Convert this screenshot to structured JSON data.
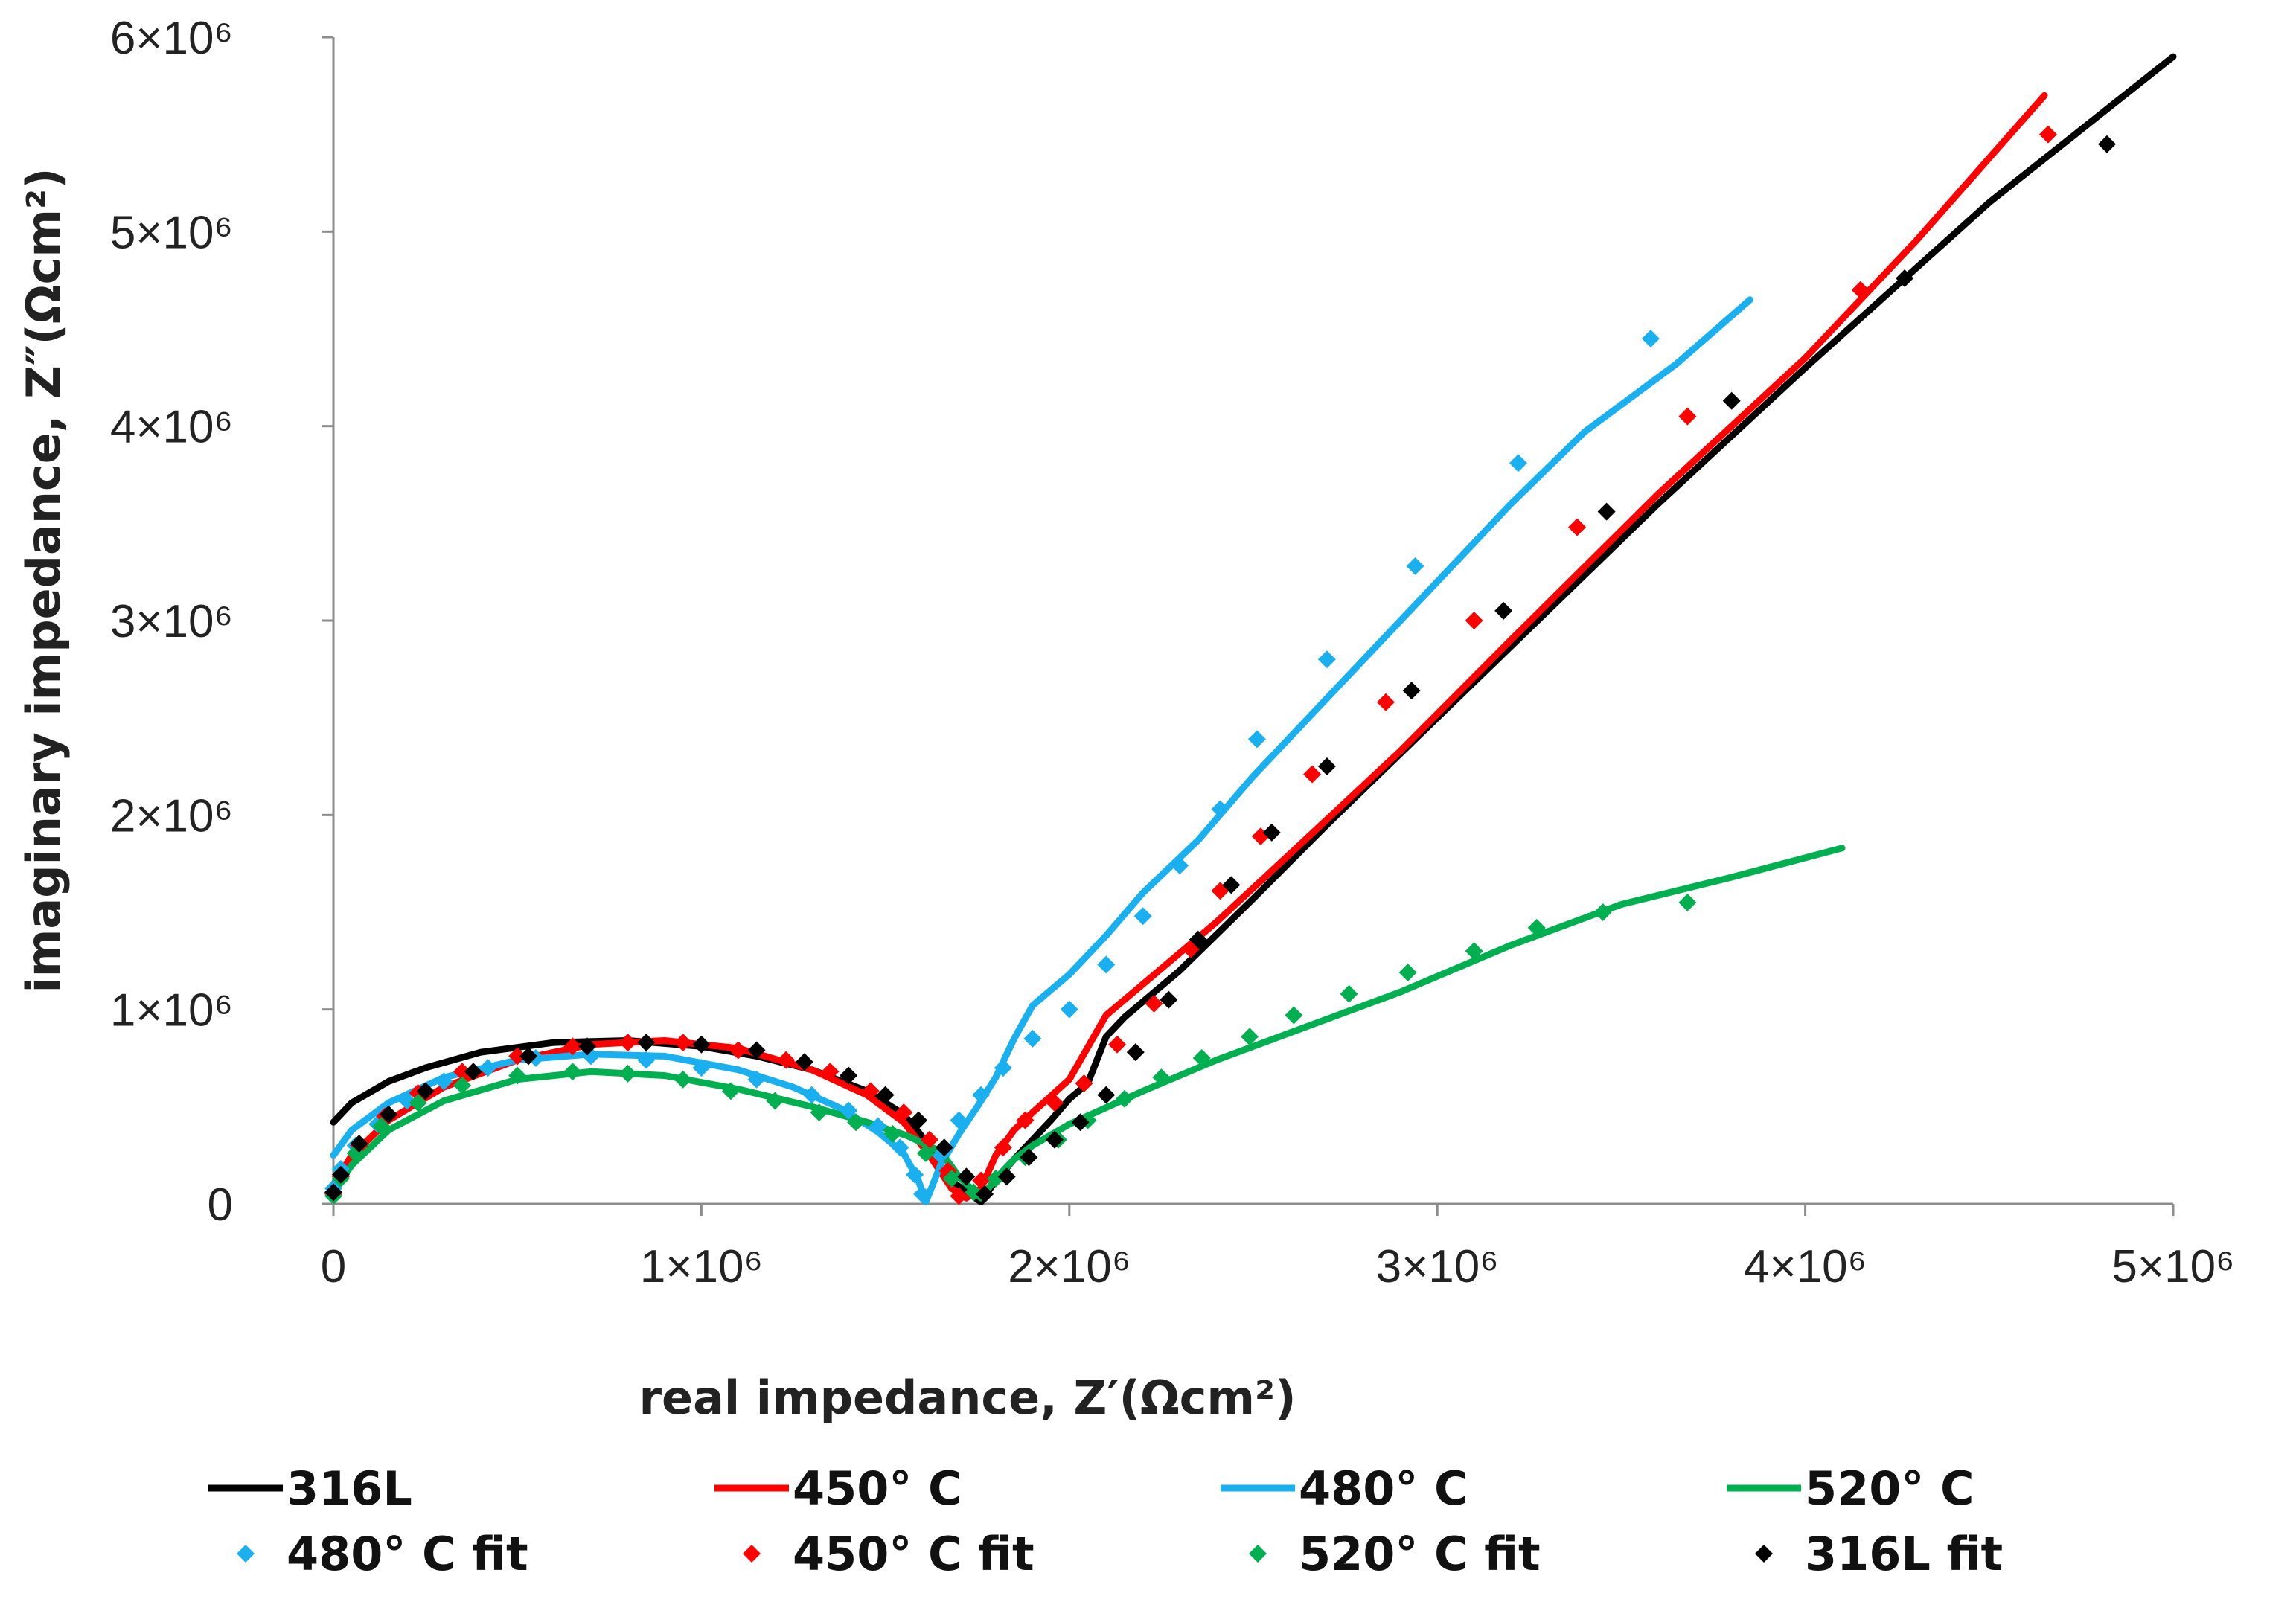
{
  "chart_data": {
    "type": "scatter",
    "title": "",
    "xlabel": "real impedance, Z′(Ωcm²)",
    "ylabel": "imaginary impedance, Z″(Ωcm²)",
    "xlim": [
      0,
      5000000
    ],
    "ylim": [
      0,
      6000000
    ],
    "x_ticks": [
      {
        "value": 0,
        "label": "0"
      },
      {
        "value": 1000000,
        "label": "1×10⁶"
      },
      {
        "value": 2000000,
        "label": "2×10⁶"
      },
      {
        "value": 3000000,
        "label": "3×10⁶"
      },
      {
        "value": 4000000,
        "label": "4×10⁶"
      },
      {
        "value": 5000000,
        "label": "5×10⁶"
      }
    ],
    "y_ticks": [
      {
        "value": 0,
        "label": "0"
      },
      {
        "value": 1000000,
        "label": "1×10⁶"
      },
      {
        "value": 2000000,
        "label": "2×10⁶"
      },
      {
        "value": 3000000,
        "label": "3×10⁶"
      },
      {
        "value": 4000000,
        "label": "4×10⁶"
      },
      {
        "value": 5000000,
        "label": "5×10⁶"
      },
      {
        "value": 6000000,
        "label": "6×10⁶"
      }
    ],
    "grid": false,
    "legend_position": "bottom",
    "series": [
      {
        "name": "316L",
        "kind": "line",
        "color": "#000000",
        "points": [
          [
            0,
            420000
          ],
          [
            50000,
            520000
          ],
          [
            150000,
            630000
          ],
          [
            250000,
            700000
          ],
          [
            400000,
            780000
          ],
          [
            600000,
            830000
          ],
          [
            800000,
            840000
          ],
          [
            1000000,
            810000
          ],
          [
            1150000,
            760000
          ],
          [
            1300000,
            690000
          ],
          [
            1450000,
            580000
          ],
          [
            1550000,
            460000
          ],
          [
            1620000,
            300000
          ],
          [
            1650000,
            160000
          ],
          [
            1700000,
            90000
          ],
          [
            1760000,
            10000
          ],
          [
            1800000,
            120000
          ],
          [
            1850000,
            230000
          ],
          [
            1900000,
            330000
          ],
          [
            1950000,
            430000
          ],
          [
            2000000,
            540000
          ],
          [
            2050000,
            620000
          ],
          [
            2100000,
            860000
          ],
          [
            2150000,
            960000
          ],
          [
            2300000,
            1200000
          ],
          [
            2500000,
            1570000
          ],
          [
            2700000,
            1950000
          ],
          [
            3000000,
            2500000
          ],
          [
            3300000,
            3050000
          ],
          [
            3600000,
            3600000
          ],
          [
            4000000,
            4300000
          ],
          [
            4500000,
            5150000
          ],
          [
            5000000,
            5900000
          ]
        ]
      },
      {
        "name": "450° C",
        "kind": "line",
        "color": "#ff0000",
        "points": [
          [
            0,
            100000
          ],
          [
            50000,
            250000
          ],
          [
            150000,
            430000
          ],
          [
            300000,
            600000
          ],
          [
            500000,
            740000
          ],
          [
            700000,
            820000
          ],
          [
            900000,
            840000
          ],
          [
            1100000,
            800000
          ],
          [
            1300000,
            690000
          ],
          [
            1450000,
            560000
          ],
          [
            1550000,
            420000
          ],
          [
            1620000,
            250000
          ],
          [
            1680000,
            80000
          ],
          [
            1720000,
            30000
          ],
          [
            1760000,
            80000
          ],
          [
            1800000,
            250000
          ],
          [
            1850000,
            380000
          ],
          [
            1900000,
            470000
          ],
          [
            2000000,
            640000
          ],
          [
            2100000,
            970000
          ],
          [
            2200000,
            1130000
          ],
          [
            2400000,
            1450000
          ],
          [
            2600000,
            1800000
          ],
          [
            2900000,
            2330000
          ],
          [
            3200000,
            2900000
          ],
          [
            3600000,
            3650000
          ],
          [
            4000000,
            4350000
          ],
          [
            4300000,
            4950000
          ],
          [
            4650000,
            5700000
          ]
        ]
      },
      {
        "name": "480° C",
        "kind": "line",
        "color": "#1ab0f0",
        "points": [
          [
            0,
            250000
          ],
          [
            50000,
            380000
          ],
          [
            150000,
            520000
          ],
          [
            300000,
            650000
          ],
          [
            500000,
            740000
          ],
          [
            700000,
            770000
          ],
          [
            900000,
            760000
          ],
          [
            1100000,
            690000
          ],
          [
            1250000,
            600000
          ],
          [
            1380000,
            490000
          ],
          [
            1480000,
            370000
          ],
          [
            1550000,
            260000
          ],
          [
            1590000,
            120000
          ],
          [
            1610000,
            10000
          ],
          [
            1650000,
            200000
          ],
          [
            1700000,
            360000
          ],
          [
            1750000,
            500000
          ],
          [
            1800000,
            650000
          ],
          [
            1850000,
            850000
          ],
          [
            1900000,
            1020000
          ],
          [
            2000000,
            1180000
          ],
          [
            2100000,
            1380000
          ],
          [
            2200000,
            1600000
          ],
          [
            2350000,
            1870000
          ],
          [
            2500000,
            2200000
          ],
          [
            2700000,
            2600000
          ],
          [
            2950000,
            3100000
          ],
          [
            3200000,
            3600000
          ],
          [
            3400000,
            3970000
          ],
          [
            3650000,
            4320000
          ],
          [
            3850000,
            4650000
          ]
        ]
      },
      {
        "name": "520° C",
        "kind": "line",
        "color": "#00b050",
        "points": [
          [
            0,
            60000
          ],
          [
            50000,
            200000
          ],
          [
            150000,
            380000
          ],
          [
            300000,
            530000
          ],
          [
            500000,
            640000
          ],
          [
            700000,
            680000
          ],
          [
            900000,
            660000
          ],
          [
            1100000,
            590000
          ],
          [
            1300000,
            500000
          ],
          [
            1450000,
            420000
          ],
          [
            1560000,
            350000
          ],
          [
            1650000,
            270000
          ],
          [
            1700000,
            140000
          ],
          [
            1760000,
            30000
          ],
          [
            1800000,
            130000
          ],
          [
            1850000,
            230000
          ],
          [
            1900000,
            300000
          ],
          [
            2000000,
            410000
          ],
          [
            2200000,
            580000
          ],
          [
            2400000,
            740000
          ],
          [
            2600000,
            880000
          ],
          [
            2900000,
            1090000
          ],
          [
            3200000,
            1330000
          ],
          [
            3500000,
            1540000
          ],
          [
            3800000,
            1680000
          ],
          [
            4100000,
            1830000
          ]
        ]
      },
      {
        "name": "480° C fit",
        "kind": "markers",
        "color": "#1ab0f0",
        "points": [
          [
            0,
            80000
          ],
          [
            20000,
            180000
          ],
          [
            60000,
            300000
          ],
          [
            120000,
            410000
          ],
          [
            200000,
            530000
          ],
          [
            300000,
            630000
          ],
          [
            420000,
            700000
          ],
          [
            550000,
            750000
          ],
          [
            700000,
            760000
          ],
          [
            850000,
            740000
          ],
          [
            1000000,
            700000
          ],
          [
            1150000,
            640000
          ],
          [
            1300000,
            560000
          ],
          [
            1400000,
            480000
          ],
          [
            1480000,
            400000
          ],
          [
            1540000,
            290000
          ],
          [
            1580000,
            150000
          ],
          [
            1600000,
            50000
          ],
          [
            1650000,
            250000
          ],
          [
            1700000,
            430000
          ],
          [
            1760000,
            560000
          ],
          [
            1820000,
            700000
          ],
          [
            1900000,
            850000
          ],
          [
            2000000,
            1000000
          ],
          [
            2100000,
            1230000
          ],
          [
            2200000,
            1480000
          ],
          [
            2300000,
            1740000
          ],
          [
            2410000,
            2030000
          ],
          [
            2510000,
            2390000
          ],
          [
            2700000,
            2800000
          ],
          [
            2940000,
            3280000
          ],
          [
            3220000,
            3810000
          ],
          [
            3580000,
            4450000
          ]
        ]
      },
      {
        "name": "450° C fit",
        "kind": "markers",
        "color": "#ff0000",
        "points": [
          [
            0,
            50000
          ],
          [
            20000,
            140000
          ],
          [
            70000,
            300000
          ],
          [
            140000,
            450000
          ],
          [
            230000,
            570000
          ],
          [
            350000,
            680000
          ],
          [
            500000,
            760000
          ],
          [
            650000,
            810000
          ],
          [
            800000,
            830000
          ],
          [
            950000,
            830000
          ],
          [
            1100000,
            790000
          ],
          [
            1230000,
            740000
          ],
          [
            1350000,
            680000
          ],
          [
            1460000,
            580000
          ],
          [
            1550000,
            470000
          ],
          [
            1620000,
            330000
          ],
          [
            1670000,
            170000
          ],
          [
            1700000,
            40000
          ],
          [
            1760000,
            120000
          ],
          [
            1820000,
            290000
          ],
          [
            1880000,
            430000
          ],
          [
            1960000,
            520000
          ],
          [
            2040000,
            620000
          ],
          [
            2130000,
            820000
          ],
          [
            2230000,
            1030000
          ],
          [
            2330000,
            1310000
          ],
          [
            2410000,
            1610000
          ],
          [
            2520000,
            1890000
          ],
          [
            2660000,
            2210000
          ],
          [
            2860000,
            2580000
          ],
          [
            3100000,
            3000000
          ],
          [
            3380000,
            3480000
          ],
          [
            3680000,
            4050000
          ],
          [
            4150000,
            4700000
          ],
          [
            4660000,
            5500000
          ]
        ]
      },
      {
        "name": "520° C fit",
        "kind": "markers",
        "color": "#00b050",
        "points": [
          [
            0,
            40000
          ],
          [
            20000,
            130000
          ],
          [
            60000,
            260000
          ],
          [
            130000,
            400000
          ],
          [
            230000,
            520000
          ],
          [
            350000,
            610000
          ],
          [
            500000,
            660000
          ],
          [
            650000,
            680000
          ],
          [
            800000,
            670000
          ],
          [
            950000,
            640000
          ],
          [
            1080000,
            580000
          ],
          [
            1200000,
            530000
          ],
          [
            1320000,
            470000
          ],
          [
            1420000,
            420000
          ],
          [
            1520000,
            360000
          ],
          [
            1610000,
            260000
          ],
          [
            1680000,
            130000
          ],
          [
            1740000,
            60000
          ],
          [
            1800000,
            130000
          ],
          [
            1880000,
            240000
          ],
          [
            1970000,
            330000
          ],
          [
            2050000,
            430000
          ],
          [
            2150000,
            540000
          ],
          [
            2250000,
            650000
          ],
          [
            2360000,
            750000
          ],
          [
            2490000,
            860000
          ],
          [
            2610000,
            970000
          ],
          [
            2760000,
            1080000
          ],
          [
            2920000,
            1190000
          ],
          [
            3100000,
            1300000
          ],
          [
            3270000,
            1420000
          ],
          [
            3450000,
            1500000
          ],
          [
            3680000,
            1550000
          ]
        ]
      },
      {
        "name": "316L fit",
        "kind": "markers",
        "color": "#000000",
        "points": [
          [
            0,
            60000
          ],
          [
            20000,
            150000
          ],
          [
            70000,
            310000
          ],
          [
            150000,
            460000
          ],
          [
            250000,
            580000
          ],
          [
            380000,
            680000
          ],
          [
            530000,
            760000
          ],
          [
            690000,
            810000
          ],
          [
            850000,
            830000
          ],
          [
            1000000,
            820000
          ],
          [
            1150000,
            790000
          ],
          [
            1280000,
            730000
          ],
          [
            1400000,
            660000
          ],
          [
            1500000,
            560000
          ],
          [
            1590000,
            430000
          ],
          [
            1660000,
            290000
          ],
          [
            1720000,
            140000
          ],
          [
            1770000,
            50000
          ],
          [
            1830000,
            140000
          ],
          [
            1890000,
            240000
          ],
          [
            1960000,
            330000
          ],
          [
            2030000,
            420000
          ],
          [
            2100000,
            560000
          ],
          [
            2180000,
            780000
          ],
          [
            2270000,
            1050000
          ],
          [
            2350000,
            1360000
          ],
          [
            2440000,
            1640000
          ],
          [
            2550000,
            1910000
          ],
          [
            2700000,
            2250000
          ],
          [
            2930000,
            2640000
          ],
          [
            3180000,
            3050000
          ],
          [
            3460000,
            3560000
          ],
          [
            3800000,
            4130000
          ],
          [
            4270000,
            4760000
          ],
          [
            4820000,
            5450000
          ]
        ]
      }
    ],
    "legend": [
      {
        "label": "316L",
        "kind": "line",
        "color": "#000000"
      },
      {
        "label": "450° C",
        "kind": "line",
        "color": "#ff0000"
      },
      {
        "label": "480° C",
        "kind": "line",
        "color": "#1ab0f0"
      },
      {
        "label": "520° C",
        "kind": "line",
        "color": "#00b050"
      },
      {
        "label": "480° C fit",
        "kind": "marker",
        "color": "#1ab0f0"
      },
      {
        "label": "450° C fit",
        "kind": "marker",
        "color": "#ff0000"
      },
      {
        "label": "520° C fit",
        "kind": "marker",
        "color": "#00b050"
      },
      {
        "label": "316L fit",
        "kind": "marker",
        "color": "#000000"
      }
    ]
  }
}
